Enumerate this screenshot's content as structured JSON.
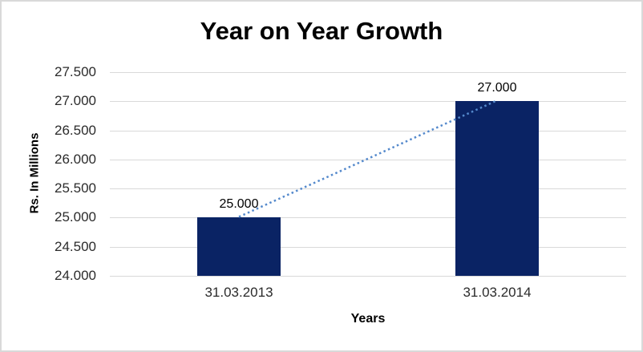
{
  "window": {
    "background_color": "#FFFFFF",
    "border_color": "#D9D9D9"
  },
  "chart_data": {
    "type": "bar",
    "title": "Year on Year Growth",
    "xlabel": "Years",
    "ylabel": "Rs. In Millions",
    "categories": [
      "31.03.2013",
      "31.03.2014"
    ],
    "series": [
      {
        "values": [
          25000,
          27000
        ],
        "value_labels": [
          "25.000",
          "27.000"
        ],
        "color": "#0A2364"
      }
    ],
    "ylim": [
      24000,
      27500
    ],
    "yticks": [
      {
        "label": "27.500",
        "value": 27500
      },
      {
        "label": "27.000",
        "value": 27000
      },
      {
        "label": "26.500",
        "value": 26500
      },
      {
        "label": "26.000",
        "value": 26000
      },
      {
        "label": "25.500",
        "value": 25500
      },
      {
        "label": "25.000",
        "value": 25000
      },
      {
        "label": "24.500",
        "value": 24500
      },
      {
        "label": "24.000",
        "value": 24000
      }
    ],
    "grid": true,
    "gridline_color": "#D9D9D9",
    "axis_line_color": "#C6C6C6",
    "legend": "none",
    "trendline": {
      "type": "linear",
      "style": "dotted",
      "color": "#5489CC",
      "from_value": 25000,
      "to_value": 27000
    }
  }
}
